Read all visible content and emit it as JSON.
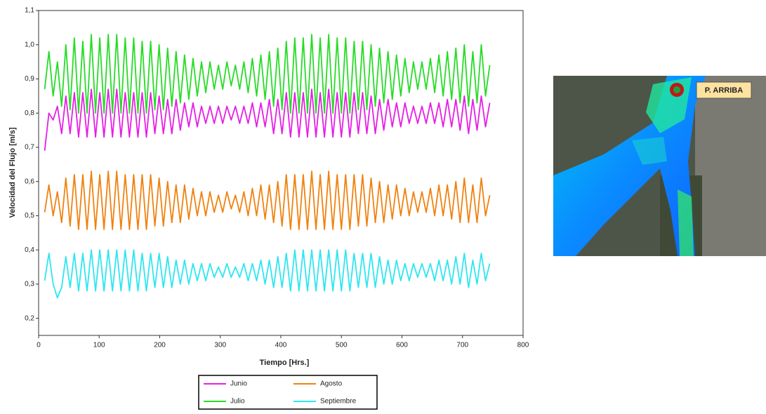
{
  "chart_data": {
    "type": "line",
    "xlabel": "Tiempo [Hrs.]",
    "ylabel": "Velocidad del Flujo [m/s]",
    "xlim": [
      0,
      800
    ],
    "xticks": [
      0,
      100,
      200,
      300,
      400,
      500,
      600,
      700,
      800
    ],
    "ylim": [
      0.15,
      1.1
    ],
    "yticks": [
      {
        "value": 0.2,
        "label": "0,2"
      },
      {
        "value": 0.3,
        "label": "0,3"
      },
      {
        "value": 0.4,
        "label": "0,4"
      },
      {
        "value": 0.5,
        "label": "0,5"
      },
      {
        "value": 0.6,
        "label": "0,6"
      },
      {
        "value": 0.7,
        "label": "0,7"
      },
      {
        "value": 0.8,
        "label": "0,8"
      },
      {
        "value": 0.9,
        "label": "0,9"
      },
      {
        "value": 1.0,
        "label": "1,0"
      },
      {
        "value": 1.1,
        "label": "1,1"
      }
    ],
    "grid": false,
    "x": [
      10,
      17,
      24,
      31,
      38,
      45,
      52,
      59,
      66,
      73,
      80,
      87,
      94,
      101,
      108,
      115,
      122,
      129,
      136,
      143,
      150,
      157,
      164,
      171,
      178,
      185,
      192,
      199,
      206,
      213,
      220,
      227,
      234,
      241,
      248,
      255,
      262,
      269,
      276,
      283,
      290,
      297,
      304,
      311,
      318,
      325,
      332,
      339,
      346,
      353,
      360,
      367,
      374,
      381,
      388,
      395,
      402,
      409,
      416,
      423,
      430,
      437,
      444,
      451,
      458,
      465,
      472,
      479,
      486,
      493,
      500,
      507,
      514,
      521,
      528,
      535,
      542,
      549,
      556,
      563,
      570,
      577,
      584,
      591,
      598,
      605,
      612,
      619,
      626,
      633,
      640,
      647,
      654,
      661,
      668,
      675,
      682,
      689,
      696,
      703,
      710,
      717,
      724,
      731,
      738,
      745
    ],
    "series": [
      {
        "name": "Junio",
        "color": "#e61ee6",
        "values": [
          0.69,
          0.8,
          0.78,
          0.82,
          0.74,
          0.85,
          0.74,
          0.86,
          0.73,
          0.86,
          0.73,
          0.87,
          0.73,
          0.86,
          0.73,
          0.87,
          0.73,
          0.87,
          0.73,
          0.86,
          0.73,
          0.86,
          0.73,
          0.86,
          0.73,
          0.86,
          0.74,
          0.85,
          0.74,
          0.84,
          0.74,
          0.84,
          0.75,
          0.83,
          0.76,
          0.83,
          0.76,
          0.82,
          0.77,
          0.82,
          0.77,
          0.82,
          0.77,
          0.82,
          0.78,
          0.82,
          0.77,
          0.82,
          0.77,
          0.83,
          0.76,
          0.83,
          0.76,
          0.84,
          0.74,
          0.84,
          0.74,
          0.86,
          0.73,
          0.86,
          0.73,
          0.86,
          0.73,
          0.87,
          0.73,
          0.86,
          0.73,
          0.87,
          0.73,
          0.86,
          0.73,
          0.86,
          0.73,
          0.86,
          0.74,
          0.86,
          0.74,
          0.85,
          0.74,
          0.84,
          0.75,
          0.84,
          0.76,
          0.83,
          0.76,
          0.83,
          0.77,
          0.82,
          0.77,
          0.82,
          0.77,
          0.83,
          0.77,
          0.83,
          0.76,
          0.84,
          0.76,
          0.84,
          0.75,
          0.85,
          0.74,
          0.84,
          0.75,
          0.85,
          0.76,
          0.83
        ]
      },
      {
        "name": "Julio",
        "color": "#26dc26",
        "values": [
          0.87,
          0.98,
          0.85,
          0.95,
          0.82,
          1.0,
          0.81,
          1.02,
          0.8,
          1.01,
          0.8,
          1.03,
          0.8,
          1.02,
          0.8,
          1.03,
          0.8,
          1.03,
          0.8,
          1.02,
          0.8,
          1.02,
          0.8,
          1.01,
          0.8,
          1.01,
          0.81,
          1.0,
          0.81,
          0.99,
          0.82,
          0.98,
          0.83,
          0.97,
          0.84,
          0.96,
          0.85,
          0.95,
          0.86,
          0.95,
          0.87,
          0.94,
          0.87,
          0.95,
          0.88,
          0.94,
          0.87,
          0.95,
          0.86,
          0.96,
          0.85,
          0.97,
          0.84,
          0.98,
          0.82,
          0.99,
          0.81,
          1.01,
          0.8,
          1.02,
          0.8,
          1.02,
          0.8,
          1.03,
          0.8,
          1.02,
          0.8,
          1.03,
          0.8,
          1.02,
          0.8,
          1.02,
          0.8,
          1.01,
          0.81,
          1.01,
          0.81,
          1.0,
          0.82,
          0.99,
          0.83,
          0.98,
          0.84,
          0.97,
          0.85,
          0.96,
          0.86,
          0.95,
          0.87,
          0.95,
          0.87,
          0.96,
          0.86,
          0.97,
          0.85,
          0.98,
          0.84,
          0.99,
          0.83,
          1.0,
          0.82,
          0.98,
          0.83,
          1.0,
          0.85,
          0.94
        ]
      },
      {
        "name": "Agosto",
        "color": "#f0820f",
        "values": [
          0.51,
          0.59,
          0.5,
          0.57,
          0.48,
          0.61,
          0.47,
          0.62,
          0.46,
          0.62,
          0.46,
          0.63,
          0.46,
          0.62,
          0.46,
          0.63,
          0.46,
          0.63,
          0.46,
          0.62,
          0.46,
          0.62,
          0.46,
          0.62,
          0.46,
          0.62,
          0.47,
          0.61,
          0.47,
          0.6,
          0.48,
          0.59,
          0.48,
          0.59,
          0.49,
          0.58,
          0.5,
          0.57,
          0.5,
          0.57,
          0.51,
          0.56,
          0.51,
          0.57,
          0.52,
          0.56,
          0.51,
          0.57,
          0.5,
          0.58,
          0.5,
          0.59,
          0.49,
          0.59,
          0.48,
          0.6,
          0.47,
          0.62,
          0.46,
          0.62,
          0.46,
          0.62,
          0.46,
          0.63,
          0.46,
          0.62,
          0.46,
          0.63,
          0.46,
          0.62,
          0.46,
          0.62,
          0.46,
          0.62,
          0.47,
          0.62,
          0.47,
          0.61,
          0.48,
          0.6,
          0.48,
          0.59,
          0.49,
          0.59,
          0.5,
          0.58,
          0.5,
          0.57,
          0.51,
          0.57,
          0.51,
          0.58,
          0.5,
          0.59,
          0.5,
          0.59,
          0.49,
          0.6,
          0.48,
          0.61,
          0.48,
          0.59,
          0.48,
          0.61,
          0.5,
          0.56
        ]
      },
      {
        "name": "Septiembre",
        "color": "#2ee6f0",
        "values": [
          0.31,
          0.39,
          0.3,
          0.26,
          0.29,
          0.38,
          0.29,
          0.39,
          0.28,
          0.39,
          0.28,
          0.4,
          0.28,
          0.4,
          0.28,
          0.4,
          0.28,
          0.4,
          0.28,
          0.4,
          0.28,
          0.4,
          0.28,
          0.39,
          0.28,
          0.39,
          0.29,
          0.39,
          0.29,
          0.38,
          0.29,
          0.37,
          0.3,
          0.37,
          0.3,
          0.36,
          0.31,
          0.36,
          0.31,
          0.36,
          0.32,
          0.35,
          0.32,
          0.36,
          0.32,
          0.35,
          0.32,
          0.36,
          0.31,
          0.36,
          0.31,
          0.37,
          0.3,
          0.37,
          0.29,
          0.38,
          0.29,
          0.39,
          0.28,
          0.4,
          0.28,
          0.4,
          0.28,
          0.4,
          0.28,
          0.4,
          0.28,
          0.4,
          0.28,
          0.4,
          0.28,
          0.4,
          0.28,
          0.39,
          0.29,
          0.39,
          0.29,
          0.39,
          0.29,
          0.38,
          0.3,
          0.37,
          0.3,
          0.37,
          0.31,
          0.36,
          0.31,
          0.36,
          0.32,
          0.36,
          0.32,
          0.36,
          0.31,
          0.37,
          0.31,
          0.37,
          0.3,
          0.38,
          0.3,
          0.39,
          0.29,
          0.37,
          0.3,
          0.39,
          0.31,
          0.36
        ]
      }
    ]
  },
  "map_label": "P. ARRIBA"
}
